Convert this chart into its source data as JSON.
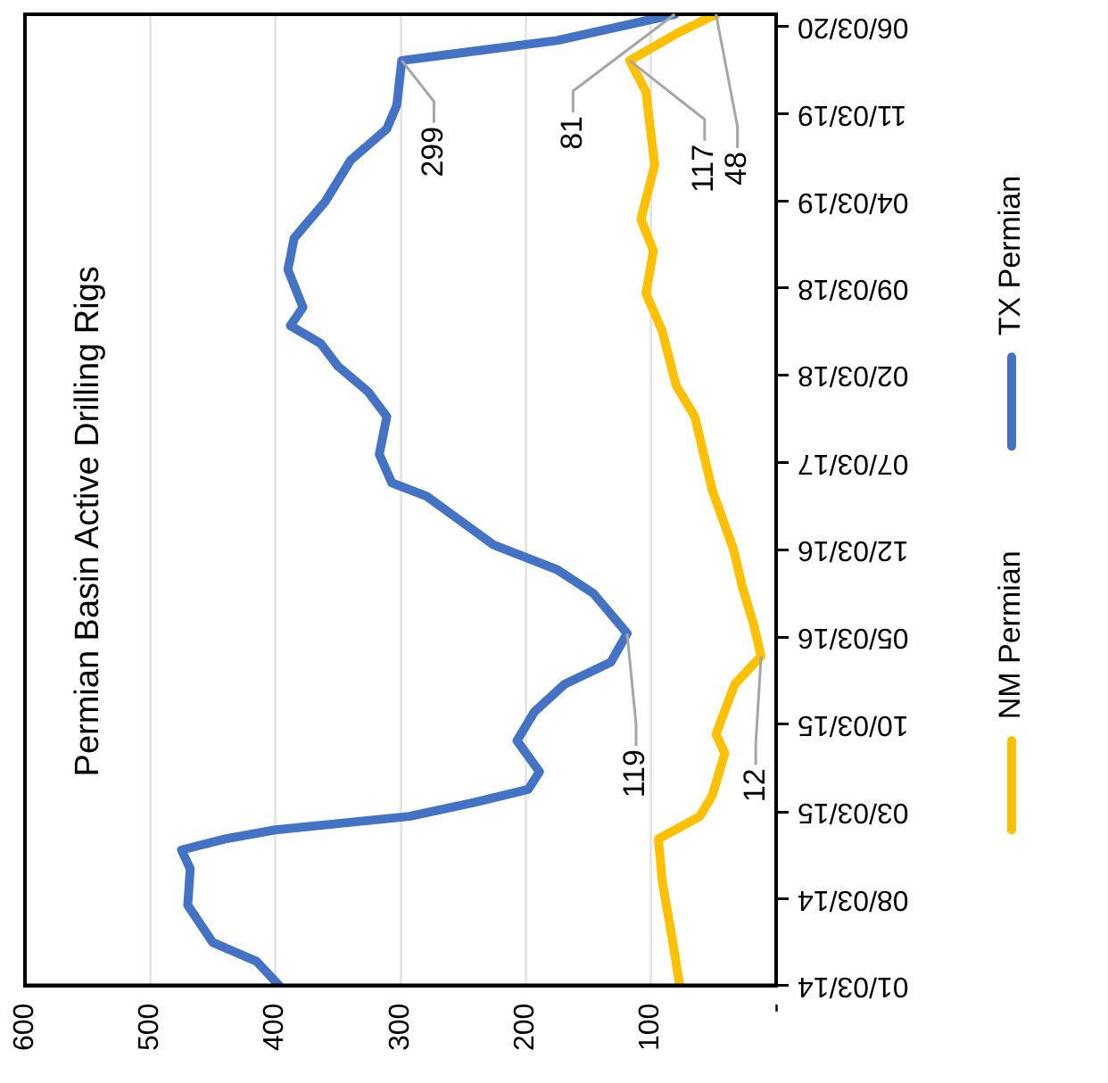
{
  "chart_data": {
    "type": "line",
    "orientation": "horizontal",
    "title": "Permian Basin Active Drilling Rigs",
    "ylim": [
      "2014-01-03",
      "2020-07-03"
    ],
    "yticks": [
      {
        "value": "2014-01-03",
        "label": "01/03/14"
      },
      {
        "value": "2014-08-03",
        "label": "08/03/14"
      },
      {
        "value": "2015-03-03",
        "label": "03/03/15"
      },
      {
        "value": "2015-10-03",
        "label": "10/03/15"
      },
      {
        "value": "2016-05-03",
        "label": "05/03/16"
      },
      {
        "value": "2016-12-03",
        "label": "12/03/16"
      },
      {
        "value": "2017-07-03",
        "label": "07/03/17"
      },
      {
        "value": "2018-02-03",
        "label": "02/03/18"
      },
      {
        "value": "2018-09-03",
        "label": "09/03/18"
      },
      {
        "value": "2019-04-03",
        "label": "04/03/19"
      },
      {
        "value": "2019-11-03",
        "label": "11/03/19"
      },
      {
        "value": "2020-06-03",
        "label": "06/03/20"
      }
    ],
    "xlim": [
      600,
      0
    ],
    "xticks": [
      600,
      500,
      400,
      300,
      200,
      100,
      {
        "value": 0,
        "label": "-"
      }
    ],
    "grid": "x",
    "legend": "right",
    "marker": "none",
    "line_style": "solid",
    "series": [
      {
        "name": "TX Permian",
        "color": "#4472c4",
        "x": [
          "2014-01-03",
          "2014-03-03",
          "2014-04-18",
          "2014-07-18",
          "2014-10-15",
          "2014-11-30",
          "2014-12-27",
          "2015-01-18",
          "2015-02-20",
          "2015-03-27",
          "2015-04-27",
          "2015-06-09",
          "2015-08-24",
          "2015-11-03",
          "2016-01-09",
          "2016-03-03",
          "2016-05-12",
          "2016-08-18",
          "2016-10-15",
          "2016-12-15",
          "2017-04-12",
          "2017-05-15",
          "2017-07-24",
          "2017-10-24",
          "2017-12-24",
          "2018-02-24",
          "2018-04-21",
          "2018-06-03",
          "2018-07-18",
          "2018-10-18",
          "2019-01-03",
          "2019-04-03",
          "2019-07-12",
          "2019-09-27",
          "2019-11-24",
          "2020-03-12",
          "2020-04-30",
          "2020-07-03"
        ],
        "values": [
          397,
          415,
          450,
          470,
          468,
          475,
          440,
          400,
          293,
          240,
          198,
          189,
          207,
          193,
          169,
          132,
          119,
          146,
          175,
          226,
          279,
          307,
          317,
          311,
          326,
          350,
          364,
          388,
          378,
          390,
          385,
          360,
          340,
          311,
          303,
          299,
          175,
          81
        ]
      },
      {
        "name": "NM Permian",
        "color": "#ffc000",
        "x": [
          "2014-01-03",
          "2014-05-15",
          "2014-09-15",
          "2014-12-27",
          "2015-02-20",
          "2015-04-12",
          "2015-07-24",
          "2015-09-09",
          "2016-01-09",
          "2016-03-18",
          "2016-06-03",
          "2016-09-03",
          "2016-12-03",
          "2017-04-27",
          "2017-10-24",
          "2018-01-09",
          "2018-05-21",
          "2018-08-21",
          "2018-12-03",
          "2019-02-18",
          "2019-06-30",
          "2019-12-27",
          "2020-03-12",
          "2020-05-21",
          "2020-07-03"
        ],
        "values": [
          77,
          84,
          91,
          94,
          61,
          51,
          41,
          48,
          33,
          12,
          18,
          27,
          34,
          51,
          65,
          80,
          91,
          104,
          98,
          108,
          97,
          104,
          117,
          77,
          48
        ]
      }
    ],
    "annotations": [
      {
        "text": "299",
        "x": 299,
        "y": "2020-03-12"
      },
      {
        "text": "81",
        "x": 81,
        "y": "2020-07-03"
      },
      {
        "text": "117",
        "x": 117,
        "y": "2020-03-12"
      },
      {
        "text": "48",
        "x": 48,
        "y": "2020-07-03"
      },
      {
        "text": "119",
        "x": 119,
        "y": "2016-05-12"
      },
      {
        "text": "12",
        "x": 12,
        "y": "2016-03-18"
      }
    ]
  }
}
